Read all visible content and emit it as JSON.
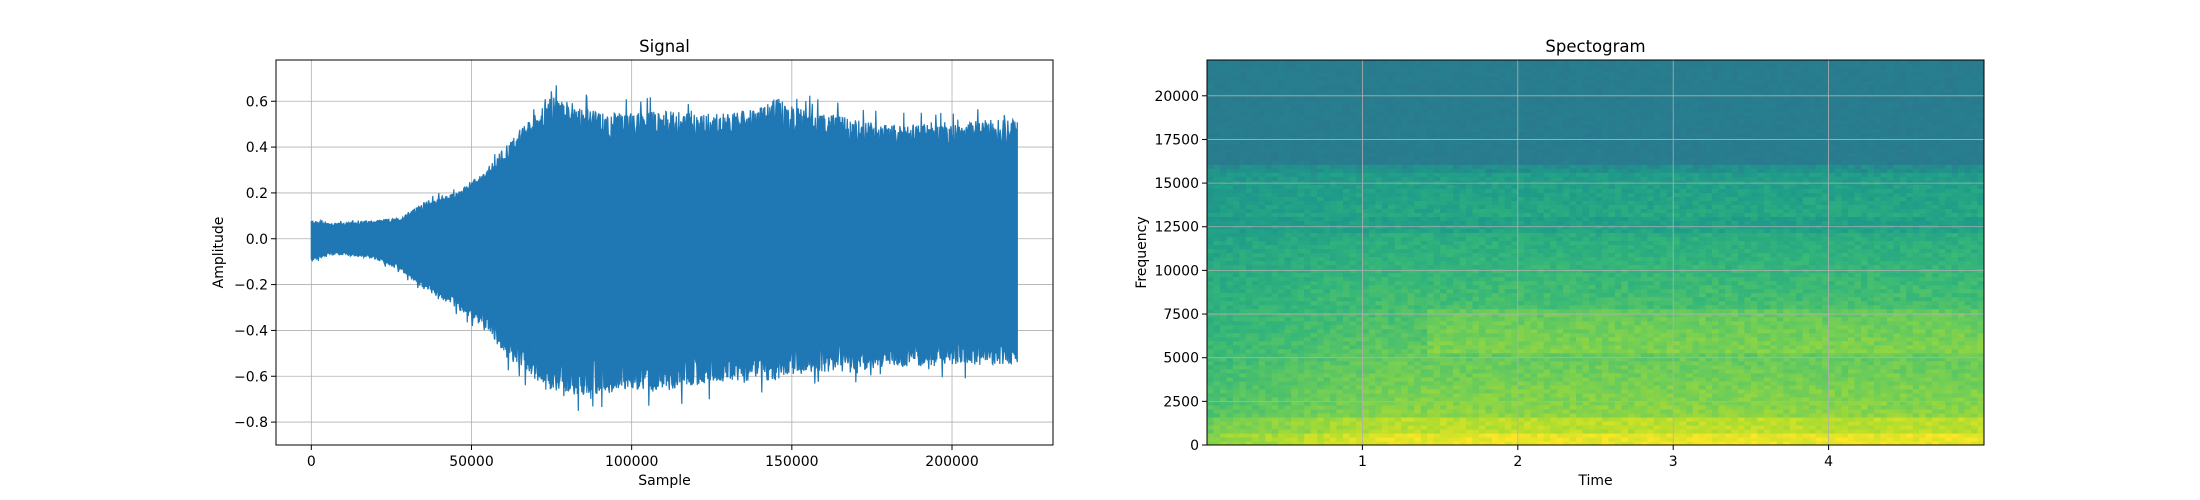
{
  "chart_data": [
    {
      "type": "line",
      "title": "Signal",
      "xlabel": "Sample",
      "ylabel": "Amplitude",
      "xlim": [
        -11025,
        231525
      ],
      "ylim": [
        -0.9,
        0.78
      ],
      "grid": true,
      "color": "#1f77b4",
      "xticks": [
        0,
        50000,
        100000,
        150000,
        200000
      ],
      "xtick_labels": [
        "0",
        "50000",
        "100000",
        "150000",
        "200000"
      ],
      "yticks": [
        -0.8,
        -0.6,
        -0.4,
        -0.2,
        0.0,
        0.2,
        0.4,
        0.6
      ],
      "ytick_labels": [
        "−0.8",
        "−0.6",
        "−0.4",
        "−0.2",
        "0.0",
        "0.2",
        "0.4",
        "0.6"
      ],
      "envelope": {
        "x": [
          0,
          5000,
          10000,
          20000,
          28000,
          35000,
          45000,
          55000,
          60000,
          65000,
          70000,
          75000,
          80000,
          90000,
          100000,
          110000,
          120000,
          130000,
          140000,
          145000,
          150000,
          160000,
          170000,
          180000,
          190000,
          200000,
          210000,
          220500
        ],
        "upper": [
          0.08,
          0.07,
          0.07,
          0.08,
          0.09,
          0.16,
          0.2,
          0.3,
          0.4,
          0.47,
          0.55,
          0.62,
          0.6,
          0.55,
          0.55,
          0.56,
          0.55,
          0.55,
          0.57,
          0.62,
          0.58,
          0.55,
          0.52,
          0.5,
          0.5,
          0.5,
          0.52,
          0.52
        ],
        "lower": [
          -0.1,
          -0.07,
          -0.07,
          -0.09,
          -0.14,
          -0.22,
          -0.3,
          -0.4,
          -0.5,
          -0.55,
          -0.62,
          -0.66,
          -0.68,
          -0.68,
          -0.66,
          -0.66,
          -0.64,
          -0.62,
          -0.62,
          -0.62,
          -0.6,
          -0.58,
          -0.58,
          -0.56,
          -0.56,
          -0.55,
          -0.55,
          -0.55
        ]
      }
    },
    {
      "type": "heatmap",
      "title": "Spectogram",
      "xlabel": "Time",
      "ylabel": "Frequency",
      "xlim": [
        0,
        5.0
      ],
      "ylim": [
        0,
        22050
      ],
      "grid": true,
      "colormap": "viridis",
      "xticks": [
        1,
        2,
        3,
        4
      ],
      "xtick_labels": [
        "1",
        "2",
        "3",
        "4"
      ],
      "yticks": [
        0,
        2500,
        5000,
        7500,
        10000,
        12500,
        15000,
        17500,
        20000
      ],
      "ytick_labels": [
        "0",
        "2500",
        "5000",
        "7500",
        "10000",
        "12500",
        "15000",
        "17500",
        "20000"
      ]
    }
  ]
}
